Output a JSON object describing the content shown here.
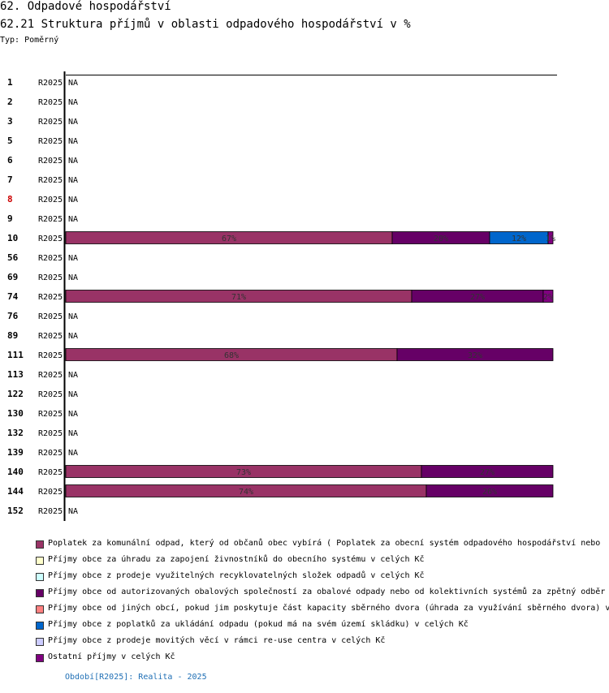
{
  "header": {
    "title": "62. Odpadové hospodářství",
    "subtitle": "62.21 Struktura příjmů v oblasti odpadového hospodářství v %",
    "type_label": "Typ: Poměrný"
  },
  "chart_data": {
    "type": "bar",
    "orientation": "horizontal-stacked-percent",
    "title": "62.21 Struktura příjmů v oblasti odpadového hospodářství v %",
    "categories": [
      "1",
      "2",
      "3",
      "5",
      "6",
      "7",
      "8",
      "9",
      "10",
      "56",
      "69",
      "74",
      "76",
      "89",
      "111",
      "113",
      "122",
      "130",
      "132",
      "139",
      "140",
      "144",
      "152"
    ],
    "highlight_category": "8",
    "period_label": "R2025",
    "na_label": "NA",
    "xlim": [
      0,
      100
    ],
    "rows": [
      {
        "id": "1",
        "period": "R2025",
        "values": null
      },
      {
        "id": "2",
        "period": "R2025",
        "values": null
      },
      {
        "id": "3",
        "period": "R2025",
        "values": null
      },
      {
        "id": "5",
        "period": "R2025",
        "values": null
      },
      {
        "id": "6",
        "period": "R2025",
        "values": null
      },
      {
        "id": "7",
        "period": "R2025",
        "values": null
      },
      {
        "id": "8",
        "period": "R2025",
        "values": null
      },
      {
        "id": "9",
        "period": "R2025",
        "values": null
      },
      {
        "id": "10",
        "period": "R2025",
        "values": [
          67,
          0,
          0,
          20,
          0,
          12,
          0,
          1
        ]
      },
      {
        "id": "56",
        "period": "R2025",
        "values": null
      },
      {
        "id": "69",
        "period": "R2025",
        "values": null
      },
      {
        "id": "74",
        "period": "R2025",
        "values": [
          71,
          0,
          0,
          27,
          0,
          0,
          0,
          2
        ]
      },
      {
        "id": "76",
        "period": "R2025",
        "values": null
      },
      {
        "id": "89",
        "period": "R2025",
        "values": null
      },
      {
        "id": "111",
        "period": "R2025",
        "values": [
          68,
          0,
          0,
          32,
          0,
          0,
          0,
          0
        ]
      },
      {
        "id": "113",
        "period": "R2025",
        "values": null
      },
      {
        "id": "122",
        "period": "R2025",
        "values": null
      },
      {
        "id": "130",
        "period": "R2025",
        "values": null
      },
      {
        "id": "132",
        "period": "R2025",
        "values": null
      },
      {
        "id": "139",
        "period": "R2025",
        "values": null
      },
      {
        "id": "140",
        "period": "R2025",
        "values": [
          73,
          0,
          0,
          27,
          0,
          0,
          0,
          0
        ]
      },
      {
        "id": "144",
        "period": "R2025",
        "values": [
          74,
          0,
          0,
          26,
          0,
          0,
          0,
          0
        ]
      },
      {
        "id": "152",
        "period": "R2025",
        "values": null
      }
    ],
    "series": [
      {
        "name": "Poplatek za komunální odpad, který od občanů obec vybírá ( Poplatek za obecní systém odpadového hospodářství  nebo",
        "color": "#993366"
      },
      {
        "name": "Příjmy obce za úhradu za zapojení živnostníků do obecního systému v celých Kč",
        "color": "#ffffcc"
      },
      {
        "name": "Příjmy obce z prodeje využitelných recyklovatelných složek odpadů v celých Kč",
        "color": "#ccffff"
      },
      {
        "name": "Příjmy obce od autorizovaných obalových společností za obalové odpady nebo od kolektivních systémů za zpětný odběr",
        "color": "#660066"
      },
      {
        "name": "Příjmy obce od jiných obcí, pokud jim poskytuje část kapacity sběrného dvora (úhrada za využívání sběrného dvora) v",
        "color": "#ff8080"
      },
      {
        "name": "Příjmy obce z poplatků za ukládání odpadu (pokud má na svém území skládku) v celých Kč",
        "color": "#0066cc"
      },
      {
        "name": "Příjmy obce z prodeje movitých věcí v rámci re-use centra v celých Kč",
        "color": "#ccccff"
      },
      {
        "name": "Ostatní příjmy v celých Kč",
        "color": "#800080"
      }
    ]
  },
  "footer": {
    "period_text": "Období[R2025]: Realita - 2025"
  },
  "colors": {
    "highlight": "#cc0000",
    "axis": "#000000",
    "bar_border": "#000000",
    "period_text": "#1f6fb5"
  }
}
